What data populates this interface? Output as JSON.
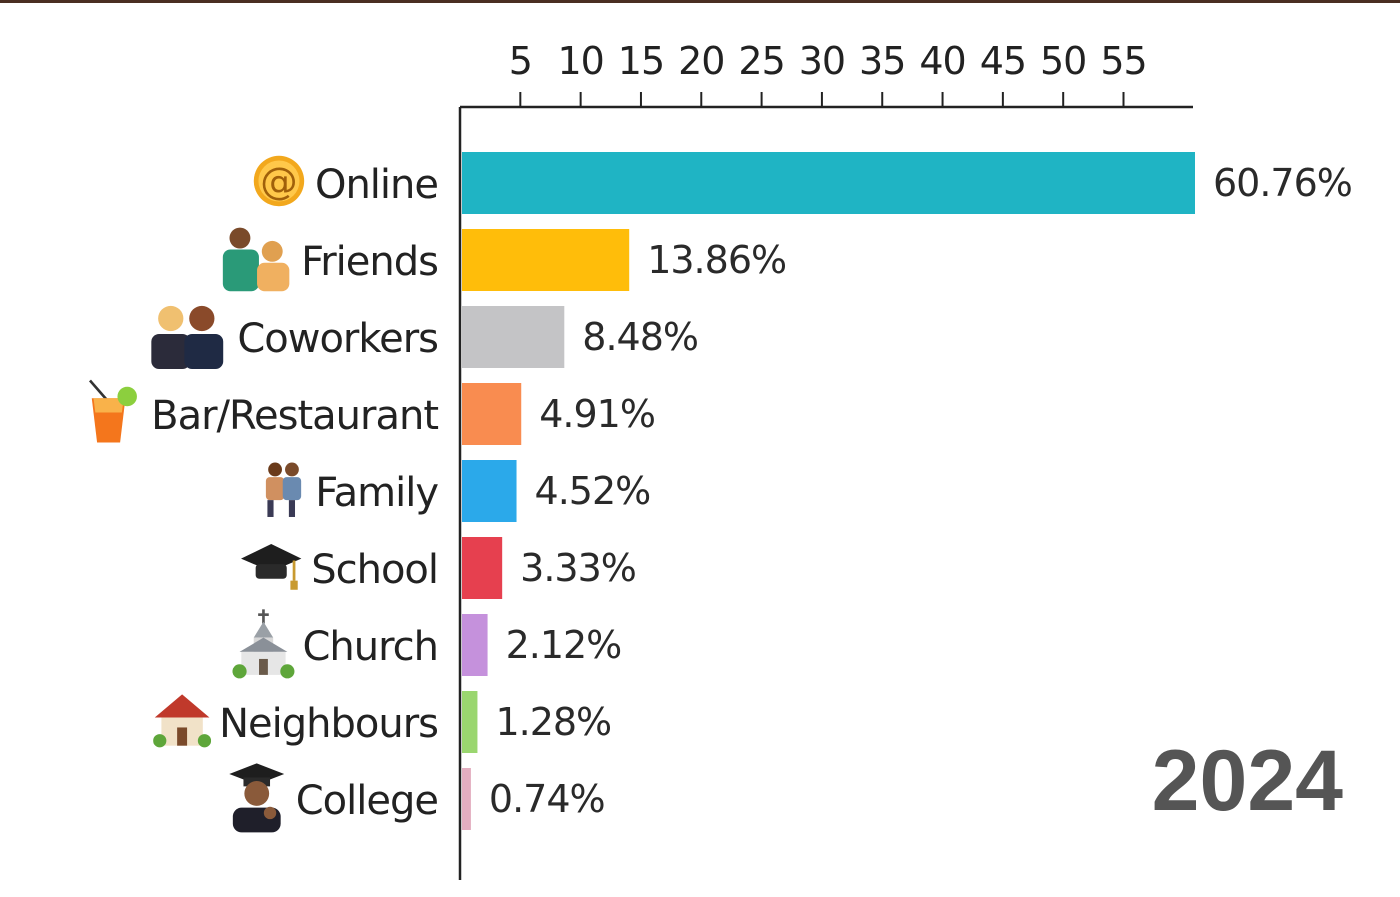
{
  "chart_data": {
    "type": "bar",
    "orientation": "horizontal",
    "categories": [
      "Online",
      "Friends",
      "Coworkers",
      "Bar/Restaurant",
      "Family",
      "School",
      "Church",
      "Neighbours",
      "College"
    ],
    "values": [
      60.76,
      13.86,
      8.48,
      4.91,
      4.52,
      3.33,
      2.12,
      1.28,
      0.74
    ],
    "value_labels": [
      "60.76%",
      "13.86%",
      "8.48%",
      "4.91%",
      "4.52%",
      "3.33%",
      "2.12%",
      "1.28%",
      "0.74%"
    ],
    "colors": [
      "#1fb4c4",
      "#ffbd0a",
      "#c4c4c6",
      "#f98c50",
      "#2ba9ea",
      "#e6404f",
      "#c591dc",
      "#9ad66f",
      "#e3aec0"
    ],
    "icons": [
      "at-sign-icon",
      "friends-icon",
      "coworkers-icon",
      "cocktail-icon",
      "family-icon",
      "graduation-cap-icon",
      "church-icon",
      "house-icon",
      "graduate-icon"
    ],
    "x_ticks": [
      5,
      10,
      15,
      20,
      25,
      30,
      35,
      40,
      45,
      50,
      55
    ],
    "xlim": [
      0,
      60.76
    ],
    "axis_position": "top",
    "grid": false,
    "year": "2024"
  }
}
